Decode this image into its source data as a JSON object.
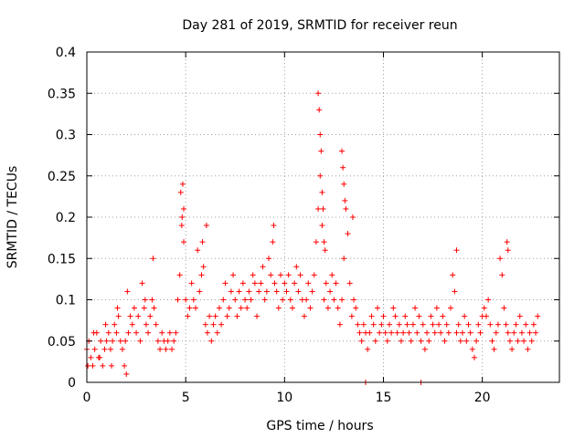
{
  "chart_data": {
    "type": "scatter",
    "title": "Day 281 of 2019, SRMTID for receiver reun",
    "xlabel": "GPS time / hours",
    "ylabel": "SRMTID / TECUs",
    "xlim": [
      0,
      23.9
    ],
    "ylim": [
      0,
      0.4
    ],
    "xticks": [
      0,
      5,
      10,
      15,
      20
    ],
    "yticks": [
      0,
      0.05,
      0.1,
      0.15,
      0.2,
      0.25,
      0.3,
      0.35,
      0.4
    ],
    "xtick_labels": [
      "0",
      "5",
      "10",
      "15",
      "20"
    ],
    "ytick_labels": [
      "0",
      "0.05",
      "0.1",
      "0.15",
      "0.2",
      "0.25",
      "0.3",
      "0.35",
      "0.4"
    ],
    "grid": true,
    "marker": "plus",
    "color": "#ff0000",
    "series": [
      {
        "name": "SRMTID",
        "x": [
          0.0,
          0.1,
          0.2,
          0.3,
          0.4,
          0.5,
          0.6,
          0.7,
          0.8,
          0.9,
          1.0,
          1.1,
          1.2,
          1.3,
          1.4,
          1.5,
          1.6,
          1.7,
          1.8,
          1.9,
          2.0,
          2.1,
          2.2,
          2.3,
          2.4,
          2.5,
          2.6,
          2.7,
          2.8,
          2.9,
          3.0,
          3.1,
          3.2,
          3.3,
          3.4,
          3.5,
          3.6,
          3.7,
          3.8,
          3.9,
          4.0,
          4.1,
          4.2,
          4.3,
          4.4,
          4.5,
          4.6,
          4.7,
          4.8,
          4.9,
          5.0,
          5.1,
          5.2,
          5.3,
          5.4,
          5.5,
          5.6,
          5.7,
          5.8,
          5.9,
          6.0,
          6.1,
          6.2,
          6.3,
          6.4,
          6.5,
          6.6,
          6.7,
          6.8,
          6.9,
          7.0,
          7.1,
          7.2,
          7.3,
          7.4,
          7.5,
          7.6,
          7.7,
          7.8,
          7.9,
          8.0,
          8.1,
          8.2,
          8.3,
          8.4,
          8.5,
          8.6,
          8.7,
          8.8,
          8.9,
          9.0,
          9.1,
          9.2,
          9.3,
          9.4,
          9.5,
          9.6,
          9.7,
          9.8,
          9.9,
          10.0,
          10.1,
          10.2,
          10.3,
          10.4,
          10.5,
          10.6,
          10.7,
          10.8,
          10.9,
          11.0,
          11.1,
          11.2,
          11.3,
          11.4,
          11.5,
          11.6,
          11.7,
          11.8,
          11.9,
          12.0,
          12.1,
          12.2,
          12.3,
          12.4,
          12.5,
          12.6,
          12.7,
          12.8,
          12.9,
          13.0,
          13.1,
          13.2,
          13.3,
          13.4,
          13.5,
          13.6,
          13.7,
          13.8,
          13.9,
          14.0,
          14.1,
          14.2,
          14.3,
          14.4,
          14.5,
          14.6,
          14.7,
          14.8,
          14.9,
          15.0,
          15.1,
          15.2,
          15.3,
          15.4,
          15.5,
          15.6,
          15.7,
          15.8,
          15.9,
          16.0,
          16.1,
          16.2,
          16.3,
          16.4,
          16.5,
          16.6,
          16.7,
          16.8,
          16.9,
          17.0,
          17.1,
          17.2,
          17.3,
          17.4,
          17.5,
          17.6,
          17.7,
          17.8,
          17.9,
          18.0,
          18.1,
          18.2,
          18.3,
          18.4,
          18.5,
          18.6,
          18.7,
          18.8,
          18.9,
          19.0,
          19.1,
          19.2,
          19.3,
          19.4,
          19.5,
          19.6,
          19.7,
          19.8,
          19.9,
          20.0,
          20.1,
          20.2,
          20.3,
          20.4,
          20.5,
          20.6,
          20.7,
          20.8,
          20.9,
          21.0,
          21.1,
          21.2,
          21.3,
          21.4,
          21.5,
          21.6,
          21.7,
          21.8,
          21.9,
          22.0,
          22.1,
          22.2,
          22.3,
          22.4,
          22.5,
          22.6,
          22.7,
          22.8,
          0.05,
          0.35,
          0.65,
          0.95,
          1.25,
          1.55,
          1.95,
          2.05,
          2.95,
          3.35,
          4.75,
          4.85,
          4.82,
          4.9,
          5.85,
          6.05,
          9.45,
          11.7,
          11.75,
          11.8,
          11.85,
          11.9,
          11.95,
          12.0,
          12.05,
          12.9,
          12.95,
          13.0,
          13.05,
          13.45,
          18.7,
          21.25,
          21.3,
          14.1,
          16.9
        ],
        "y": [
          0.04,
          0.05,
          0.03,
          0.02,
          0.04,
          0.06,
          0.03,
          0.05,
          0.02,
          0.04,
          0.05,
          0.06,
          0.04,
          0.05,
          0.07,
          0.06,
          0.08,
          0.05,
          0.04,
          0.02,
          0.01,
          0.06,
          0.08,
          0.07,
          0.09,
          0.06,
          0.08,
          0.05,
          0.12,
          0.09,
          0.07,
          0.06,
          0.08,
          0.1,
          0.09,
          0.07,
          0.05,
          0.04,
          0.06,
          0.05,
          0.04,
          0.05,
          0.06,
          0.04,
          0.05,
          0.06,
          0.1,
          0.13,
          0.19,
          0.17,
          0.1,
          0.08,
          0.09,
          0.12,
          0.1,
          0.09,
          0.16,
          0.11,
          0.13,
          0.14,
          0.07,
          0.06,
          0.08,
          0.05,
          0.07,
          0.08,
          0.06,
          0.09,
          0.07,
          0.1,
          0.12,
          0.08,
          0.09,
          0.11,
          0.13,
          0.1,
          0.08,
          0.11,
          0.09,
          0.12,
          0.1,
          0.09,
          0.11,
          0.1,
          0.13,
          0.12,
          0.08,
          0.11,
          0.12,
          0.14,
          0.1,
          0.11,
          0.15,
          0.13,
          0.17,
          0.12,
          0.11,
          0.09,
          0.13,
          0.1,
          0.12,
          0.11,
          0.13,
          0.1,
          0.09,
          0.12,
          0.14,
          0.11,
          0.13,
          0.1,
          0.08,
          0.1,
          0.12,
          0.09,
          0.11,
          0.13,
          0.17,
          0.21,
          0.25,
          0.19,
          0.1,
          0.12,
          0.09,
          0.11,
          0.13,
          0.1,
          0.12,
          0.09,
          0.07,
          0.1,
          0.15,
          0.21,
          0.18,
          0.12,
          0.08,
          0.1,
          0.09,
          0.07,
          0.06,
          0.05,
          0.07,
          0.06,
          0.04,
          0.06,
          0.08,
          0.07,
          0.05,
          0.09,
          0.06,
          0.07,
          0.08,
          0.06,
          0.05,
          0.07,
          0.06,
          0.09,
          0.08,
          0.06,
          0.07,
          0.05,
          0.06,
          0.08,
          0.07,
          0.06,
          0.05,
          0.07,
          0.09,
          0.06,
          0.08,
          0.05,
          0.07,
          0.04,
          0.06,
          0.05,
          0.08,
          0.07,
          0.06,
          0.09,
          0.07,
          0.06,
          0.08,
          0.05,
          0.07,
          0.06,
          0.09,
          0.13,
          0.11,
          0.06,
          0.07,
          0.05,
          0.06,
          0.08,
          0.05,
          0.07,
          0.06,
          0.04,
          0.03,
          0.05,
          0.07,
          0.06,
          0.08,
          0.09,
          0.08,
          0.1,
          0.07,
          0.05,
          0.04,
          0.06,
          0.07,
          0.15,
          0.13,
          0.09,
          0.07,
          0.06,
          0.05,
          0.04,
          0.06,
          0.07,
          0.05,
          0.08,
          0.06,
          0.05,
          0.07,
          0.04,
          0.06,
          0.05,
          0.07,
          0.06,
          0.08,
          0.02,
          0.06,
          0.03,
          0.07,
          0.02,
          0.09,
          0.05,
          0.11,
          0.1,
          0.15,
          0.23,
          0.24,
          0.2,
          0.21,
          0.17,
          0.19,
          0.19,
          0.35,
          0.33,
          0.3,
          0.28,
          0.23,
          0.21,
          0.17,
          0.16,
          0.28,
          0.26,
          0.24,
          0.22,
          0.2,
          0.16,
          0.17,
          0.16,
          0.0,
          0.0
        ]
      }
    ]
  }
}
